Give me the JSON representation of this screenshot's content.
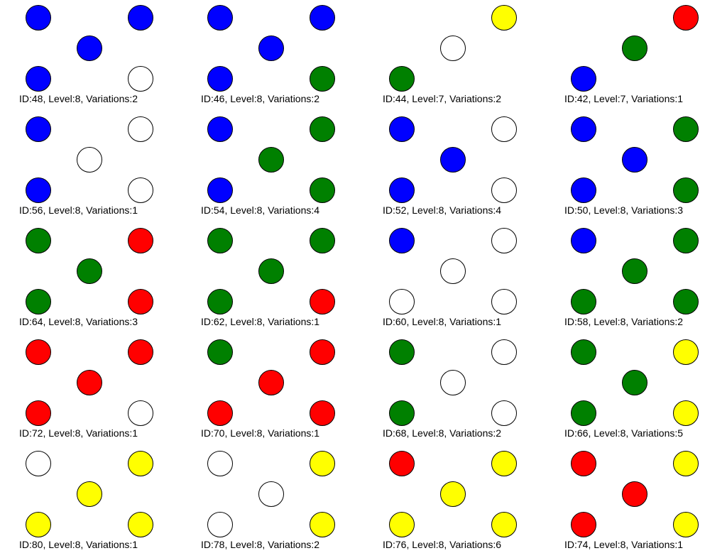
{
  "palette": {
    "blue": "#0000ff",
    "green": "#008000",
    "red": "#ff0000",
    "yellow": "#ffff00",
    "white": "#ffffff"
  },
  "cells": [
    {
      "label": "ID:48, Level:8, Variations:2",
      "tl": "blue",
      "tr": "blue",
      "c": "blue",
      "bl": "blue",
      "br": "white"
    },
    {
      "label": "ID:46, Level:8, Variations:2",
      "tl": "blue",
      "tr": "blue",
      "c": "blue",
      "bl": "blue",
      "br": "green"
    },
    {
      "label": "ID:44, Level:7, Variations:2",
      "tl": null,
      "tr": "yellow",
      "c": "white",
      "bl": "green",
      "br": null
    },
    {
      "label": "ID:42, Level:7, Variations:1",
      "tl": null,
      "tr": "red",
      "c": "green",
      "bl": "blue",
      "br": null
    },
    {
      "label": "ID:56, Level:8, Variations:1",
      "tl": "blue",
      "tr": "white",
      "c": "white",
      "bl": "blue",
      "br": "white"
    },
    {
      "label": "ID:54, Level:8, Variations:4",
      "tl": "blue",
      "tr": "green",
      "c": "green",
      "bl": "blue",
      "br": "green"
    },
    {
      "label": "ID:52, Level:8, Variations:4",
      "tl": "blue",
      "tr": "white",
      "c": "blue",
      "bl": "blue",
      "br": "white"
    },
    {
      "label": "ID:50, Level:8, Variations:3",
      "tl": "blue",
      "tr": "green",
      "c": "blue",
      "bl": "blue",
      "br": "green"
    },
    {
      "label": "ID:64, Level:8, Variations:3",
      "tl": "green",
      "tr": "red",
      "c": "green",
      "bl": "green",
      "br": "red"
    },
    {
      "label": "ID:62, Level:8, Variations:1",
      "tl": "green",
      "tr": "green",
      "c": "green",
      "bl": "green",
      "br": "red"
    },
    {
      "label": "ID:60, Level:8, Variations:1",
      "tl": "blue",
      "tr": "white",
      "c": "white",
      "bl": "white",
      "br": "white"
    },
    {
      "label": "ID:58, Level:8, Variations:2",
      "tl": "blue",
      "tr": "green",
      "c": "green",
      "bl": "green",
      "br": "green"
    },
    {
      "label": "ID:72, Level:8, Variations:1",
      "tl": "red",
      "tr": "red",
      "c": "red",
      "bl": "red",
      "br": "white"
    },
    {
      "label": "ID:70, Level:8, Variations:1",
      "tl": "green",
      "tr": "red",
      "c": "red",
      "bl": "red",
      "br": "red"
    },
    {
      "label": "ID:68, Level:8, Variations:2",
      "tl": "green",
      "tr": "white",
      "c": "white",
      "bl": "green",
      "br": "white"
    },
    {
      "label": "ID:66, Level:8, Variations:5",
      "tl": "green",
      "tr": "yellow",
      "c": "green",
      "bl": "green",
      "br": "yellow"
    },
    {
      "label": "ID:80, Level:8, Variations:1",
      "tl": "white",
      "tr": "yellow",
      "c": "yellow",
      "bl": "yellow",
      "br": "yellow"
    },
    {
      "label": "ID:78, Level:8, Variations:2",
      "tl": "white",
      "tr": "yellow",
      "c": "white",
      "bl": "white",
      "br": "yellow"
    },
    {
      "label": "ID:76, Level:8, Variations:6",
      "tl": "red",
      "tr": "yellow",
      "c": "yellow",
      "bl": "yellow",
      "br": "yellow"
    },
    {
      "label": "ID:74, Level:8, Variations:1",
      "tl": "red",
      "tr": "yellow",
      "c": "red",
      "bl": "red",
      "br": "yellow"
    }
  ]
}
